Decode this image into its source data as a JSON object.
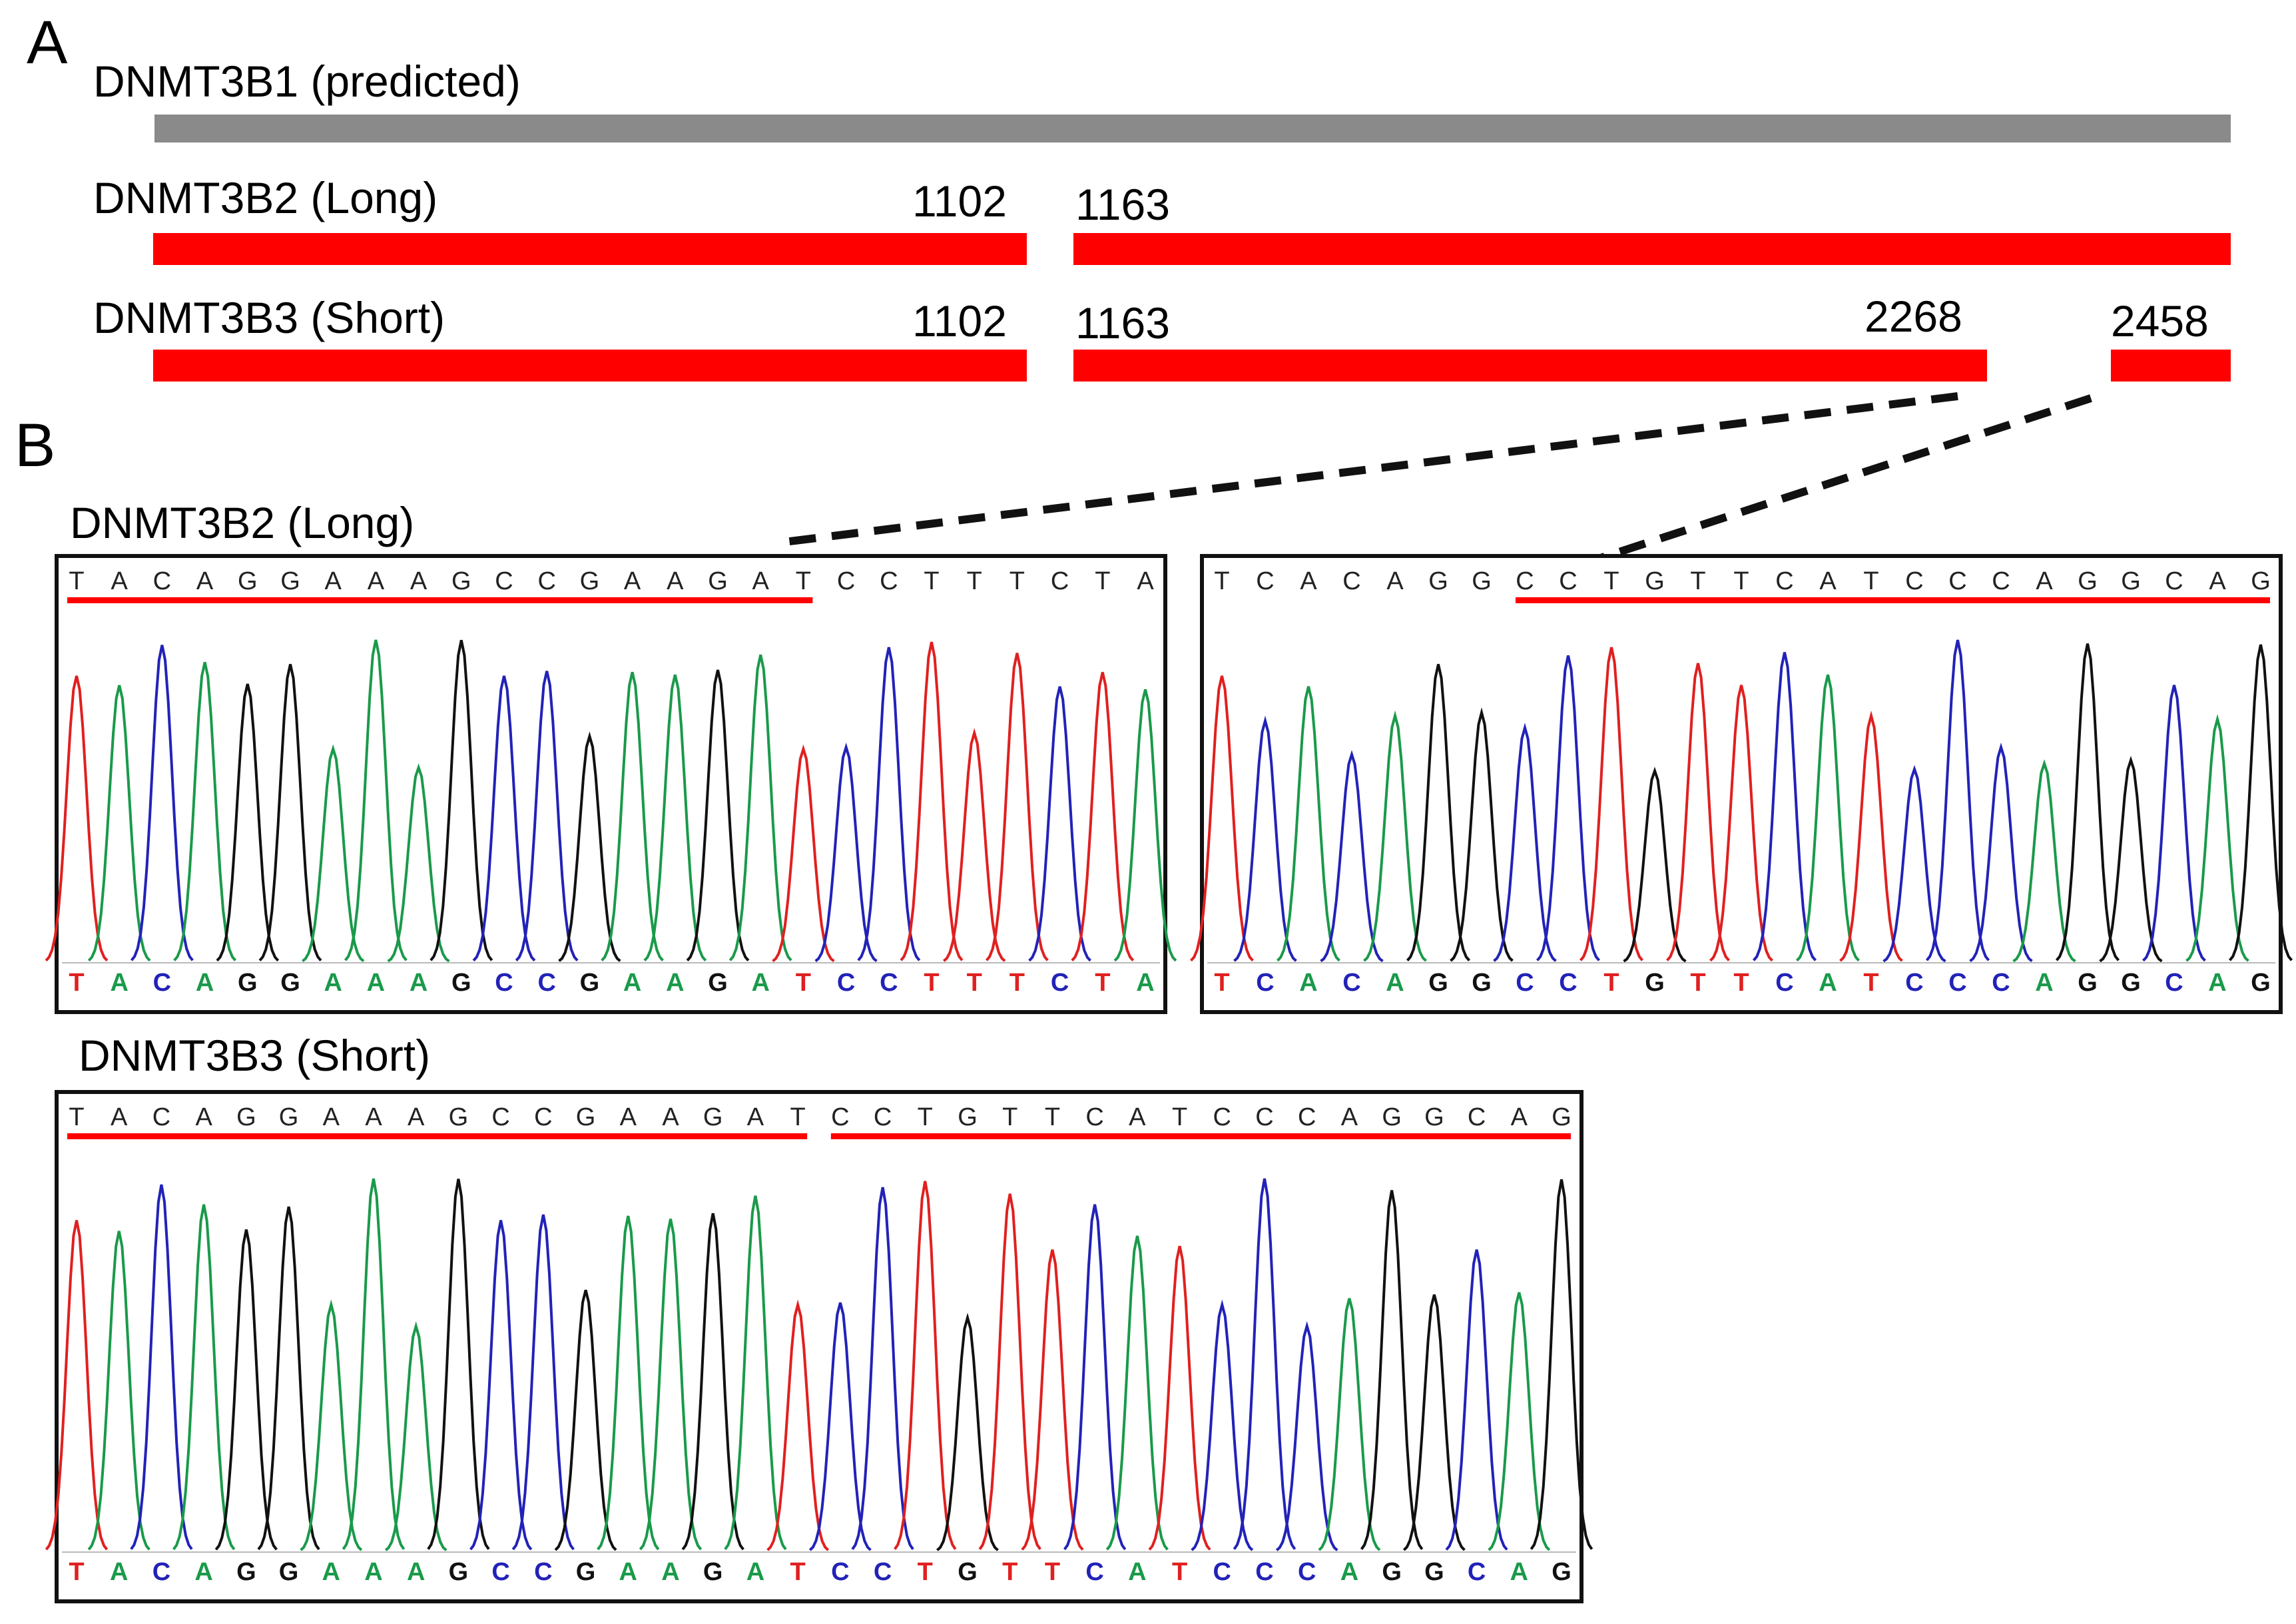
{
  "panels": {
    "a_letter": "A",
    "b_letter": "B"
  },
  "isoforms": {
    "predicted": {
      "label": "DNMT3B1 (predicted)",
      "color": "#8a8a8a"
    },
    "long": {
      "label": "DNMT3B2 (Long)",
      "color": "#ff0000",
      "segments": [
        {
          "start": 1,
          "end": 1102
        },
        {
          "start": 1163,
          "end": 3500
        }
      ],
      "positions": [
        "1102",
        "1163"
      ]
    },
    "short": {
      "label": "DNMT3B3 (Short)",
      "color": "#ff0000",
      "segments": [
        {
          "start": 1,
          "end": 1102
        },
        {
          "start": 1163,
          "end": 2268
        },
        {
          "start": 2458,
          "end": 3500
        }
      ],
      "positions": [
        "1102",
        "1163",
        "2268",
        "2458"
      ]
    }
  },
  "traces": {
    "long_left": {
      "title": "DNMT3B2 (Long)",
      "top_sequence": "TACAGGAAAGCCGAAGATCCTTTCTA",
      "base_calls": "TACAGGAAAGCCGAAGATCCTTTCTA",
      "underline_range": [
        0,
        17
      ]
    },
    "long_right": {
      "top_sequence": "TCACAGGCCTGTTCATCCCAGGCAG",
      "base_calls": "TCACAGGCCTGTTCATCCCAGGCAG",
      "underline_range": [
        7,
        24
      ]
    },
    "short": {
      "title": "DNMT3B3 (Short)",
      "top_sequence": "TACAGGAAAGCCGAAGATCCTGTTCATCCCAGGCAG",
      "base_calls": "TACAGGAAAGCCGAAGATCCTGTTCATCCCAGGCAG",
      "underline_ranges": [
        [
          0,
          17
        ],
        [
          18,
          35
        ]
      ]
    }
  },
  "base_colors": {
    "A": "#1a9a4a",
    "C": "#2222b8",
    "G": "#111111",
    "T": "#e02020"
  }
}
